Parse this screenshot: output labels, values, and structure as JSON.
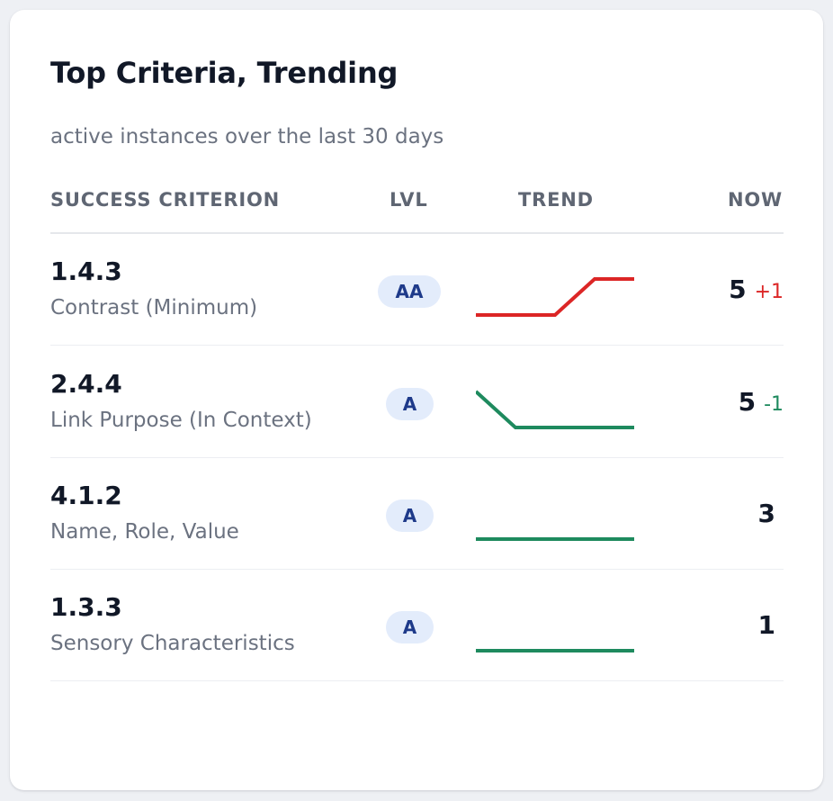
{
  "card": {
    "title": "Top Criteria, Trending",
    "subtitle": "active instances over the last 30 days"
  },
  "columns": {
    "criterion": "SUCCESS CRITERION",
    "level": "LVL",
    "trend": "TREND",
    "now": "NOW"
  },
  "colors": {
    "up": "#dc2626",
    "down": "#1e8a5e",
    "flat": "#1e8a5e",
    "badge_bg": "#e3ecfb",
    "badge_text": "#1e3a8a"
  },
  "rows": [
    {
      "id": "1.4.3",
      "name": "Contrast (Minimum)",
      "level": "AA",
      "now": "5",
      "delta": "+1",
      "trend_direction": "up",
      "trend_values": [
        4,
        4,
        4,
        5,
        5
      ]
    },
    {
      "id": "2.4.4",
      "name": "Link Purpose (In Context)",
      "level": "A",
      "now": "5",
      "delta": "-1",
      "trend_direction": "down",
      "trend_values": [
        6,
        5,
        5,
        5,
        5
      ]
    },
    {
      "id": "4.1.2",
      "name": "Name, Role, Value",
      "level": "A",
      "now": "3",
      "delta": "",
      "trend_direction": "flat",
      "trend_values": [
        3,
        3,
        3,
        3,
        3
      ]
    },
    {
      "id": "1.3.3",
      "name": "Sensory Characteristics",
      "level": "A",
      "now": "1",
      "delta": "",
      "trend_direction": "flat",
      "trend_values": [
        1,
        1,
        1,
        1,
        1
      ]
    }
  ]
}
